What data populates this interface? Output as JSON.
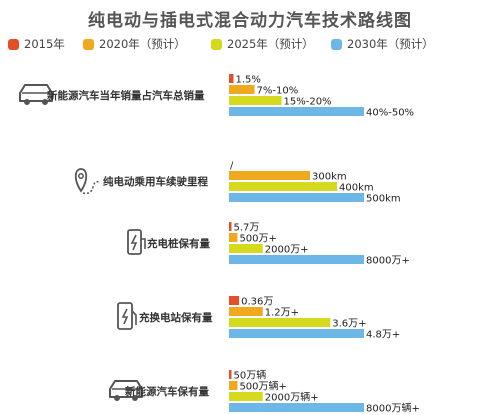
{
  "chart_data": {
    "type": "bar",
    "title": "纯电动与插电式混合动力汽车技术路线图",
    "series": [
      {
        "name": "2015年",
        "color": "#e2502a"
      },
      {
        "name": "2020年（预计）",
        "color": "#f0a81e"
      },
      {
        "name": "2025年（预计）",
        "color": "#d6da1f"
      },
      {
        "name": "2030年（预计）",
        "color": "#6cb7e6"
      }
    ],
    "groups": [
      {
        "category": "新能源汽车当年销量占汽车总销量",
        "icon": "car-icon",
        "values": [
          1.5,
          8.5,
          17.5,
          45
        ],
        "labels": [
          "1.5%",
          "7%-10%",
          "15%-20%",
          "40%-50%"
        ],
        "max": 45
      },
      {
        "category": "纯电动乘用车续驶里程",
        "icon": "map-pin-route-icon",
        "values": [
          null,
          300,
          400,
          500
        ],
        "labels": [
          "/",
          "300km",
          "400km",
          "500km"
        ],
        "max": 500
      },
      {
        "category": "充电桩保有量",
        "icon": "charging-pile-icon",
        "values": [
          5.7,
          500,
          2000,
          8000
        ],
        "labels": [
          "5.7万",
          "500万+",
          "2000万+",
          "8000万+"
        ],
        "max": 8000
      },
      {
        "category": "充换电站保有量",
        "icon": "charging-station-icon",
        "values": [
          0.36,
          1.2,
          3.6,
          4.8
        ],
        "labels": [
          "0.36万",
          "1.2万+",
          "3.6万+",
          "4.8万+"
        ],
        "max": 4.8
      },
      {
        "category": "新能源汽车保有量",
        "icon": "car-icon",
        "values": [
          50,
          500,
          2000,
          8000
        ],
        "labels": [
          "50万辆",
          "500万辆+",
          "2000万辆+",
          "8000万辆+"
        ],
        "max": 8000
      }
    ]
  }
}
